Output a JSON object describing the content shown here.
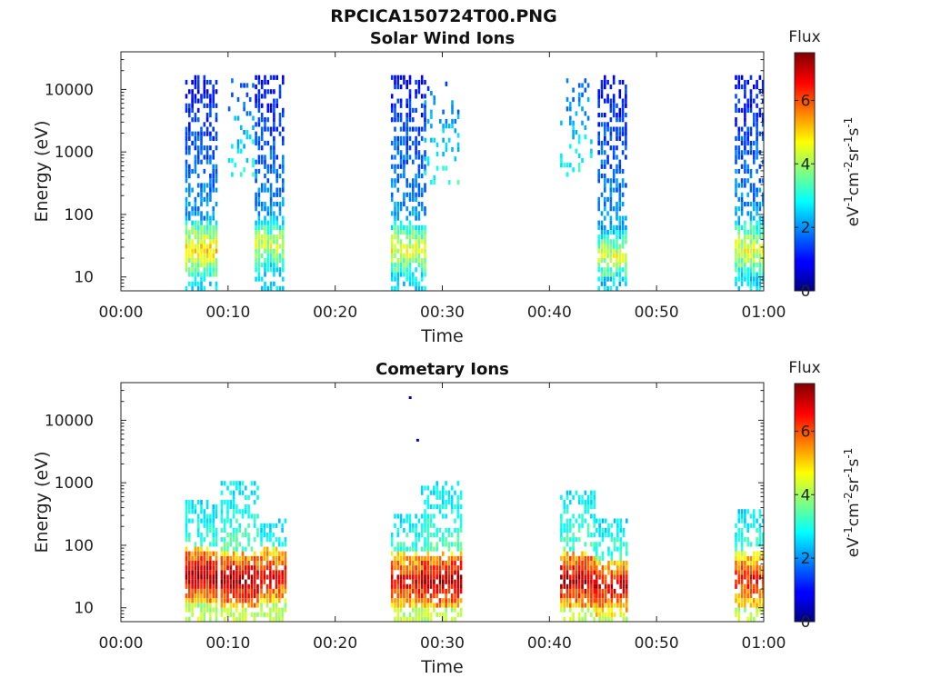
{
  "figure": {
    "title": "RPCICA150724T00.PNG"
  },
  "panels": [
    {
      "title": "Solar Wind Ions",
      "xlabel": "Time",
      "ylabel": "Energy (eV)",
      "colorbar_title": "Flux",
      "colorbar_label": "eV-1cm-2sr-1s-1"
    },
    {
      "title": "Cometary Ions",
      "xlabel": "Time",
      "ylabel": "Energy (eV)",
      "colorbar_title": "Flux",
      "colorbar_label": "eV-1cm-2sr-1s-1"
    }
  ],
  "chart_data": [
    {
      "type": "heatmap",
      "title": "Solar Wind Ions",
      "xlabel": "Time",
      "ylabel": "Energy (eV)",
      "x_ticks": [
        "00:00",
        "00:10",
        "00:20",
        "00:30",
        "00:40",
        "00:50",
        "01:00"
      ],
      "xlim_minutes": [
        0,
        60
      ],
      "y_scale": "log",
      "y_ticks": [
        "10",
        "100",
        "1000",
        "10000"
      ],
      "ylim": [
        6,
        40000
      ],
      "colorbar": {
        "title": "Flux",
        "label": "eV-1cm-2sr-1s-1",
        "range": [
          0,
          7.5
        ],
        "ticks": [
          "0",
          "2",
          "4",
          "6"
        ],
        "colormap": "jet"
      },
      "legend": "none",
      "grid": false,
      "blocks": [
        {
          "t": [
            6.0,
            9.0
          ],
          "emin": 6,
          "emax": 15000,
          "peak_e": 25,
          "peak_val": 5.0,
          "hi_val": 1.0,
          "density": 0.55
        },
        {
          "t": [
            10.0,
            12.5
          ],
          "emin": 400,
          "emax": 15000,
          "peak_e": 25,
          "peak_val": 0,
          "hi_val": 1.4,
          "density": 0.18
        },
        {
          "t": [
            12.5,
            15.2
          ],
          "emin": 6,
          "emax": 15000,
          "peak_e": 30,
          "peak_val": 4.4,
          "hi_val": 1.0,
          "density": 0.55
        },
        {
          "t": [
            25.2,
            28.3
          ],
          "emin": 6,
          "emax": 15000,
          "peak_e": 25,
          "peak_val": 4.6,
          "hi_val": 1.0,
          "density": 0.55
        },
        {
          "t": [
            28.3,
            31.5
          ],
          "emin": 300,
          "emax": 12000,
          "peak_e": 25,
          "peak_val": 0,
          "hi_val": 1.5,
          "density": 0.2
        },
        {
          "t": [
            41.0,
            44.0
          ],
          "emin": 400,
          "emax": 15000,
          "peak_e": 25,
          "peak_val": 0,
          "hi_val": 1.5,
          "density": 0.2
        },
        {
          "t": [
            44.5,
            47.3
          ],
          "emin": 6,
          "emax": 15000,
          "peak_e": 20,
          "peak_val": 4.4,
          "hi_val": 1.0,
          "density": 0.55
        },
        {
          "t": [
            57.3,
            60.0
          ],
          "emin": 6,
          "emax": 15000,
          "peak_e": 25,
          "peak_val": 4.6,
          "hi_val": 1.0,
          "density": 0.55
        }
      ]
    },
    {
      "type": "heatmap",
      "title": "Cometary Ions",
      "xlabel": "Time",
      "ylabel": "Energy (eV)",
      "x_ticks": [
        "00:00",
        "00:10",
        "00:20",
        "00:30",
        "00:40",
        "00:50",
        "01:00"
      ],
      "xlim_minutes": [
        0,
        60
      ],
      "y_scale": "log",
      "y_ticks": [
        "10",
        "100",
        "1000",
        "10000"
      ],
      "ylim": [
        6,
        40000
      ],
      "colorbar": {
        "title": "Flux",
        "label": "eV-1cm-2sr-1s-1",
        "range": [
          0,
          7.5
        ],
        "ticks": [
          "0",
          "2",
          "4",
          "6"
        ],
        "colormap": "jet"
      },
      "legend": "none",
      "grid": false,
      "blocks": [
        {
          "t": [
            6.0,
            9.0
          ],
          "emin": 6,
          "emax": 500,
          "peak_e": 30,
          "peak_val": 7.2,
          "hi_val": 2.6,
          "density": 0.6
        },
        {
          "t": [
            9.3,
            12.8
          ],
          "emin": 6,
          "emax": 1000,
          "peak_e": 25,
          "peak_val": 7.2,
          "hi_val": 2.6,
          "density": 0.55
        },
        {
          "t": [
            13.0,
            15.3
          ],
          "emin": 6,
          "emax": 250,
          "peak_e": 30,
          "peak_val": 6.8,
          "hi_val": 2.6,
          "density": 0.55
        },
        {
          "t": [
            25.2,
            28.3
          ],
          "emin": 6,
          "emax": 300,
          "peak_e": 25,
          "peak_val": 6.8,
          "hi_val": 2.6,
          "density": 0.55
        },
        {
          "t": [
            28.0,
            31.8
          ],
          "emin": 6,
          "emax": 1000,
          "peak_e": 25,
          "peak_val": 7.2,
          "hi_val": 2.6,
          "density": 0.55
        },
        {
          "t": [
            41.0,
            44.3
          ],
          "emin": 6,
          "emax": 700,
          "peak_e": 25,
          "peak_val": 7.2,
          "hi_val": 2.6,
          "density": 0.55
        },
        {
          "t": [
            44.3,
            47.3
          ],
          "emin": 6,
          "emax": 250,
          "peak_e": 20,
          "peak_val": 6.8,
          "hi_val": 2.6,
          "density": 0.55
        },
        {
          "t": [
            57.3,
            60.0
          ],
          "emin": 6,
          "emax": 350,
          "peak_e": 25,
          "peak_val": 6.6,
          "hi_val": 2.6,
          "density": 0.55
        }
      ],
      "isolated_points": [
        {
          "t": 27.0,
          "e": 23000,
          "value": 0.4
        },
        {
          "t": 27.7,
          "e": 4800,
          "value": 0.5
        }
      ]
    }
  ]
}
